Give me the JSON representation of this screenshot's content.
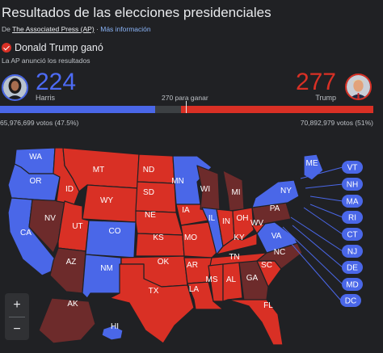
{
  "header": {
    "title": "Resultados de las elecciones presidenciales",
    "source_prefix": "De",
    "source_link": "The Associated Press (AP)",
    "source_sep": " · ",
    "more_info": "Más información"
  },
  "result": {
    "winner_text": "Donald Trump ganó",
    "announce_text": "La AP anunció los resultados"
  },
  "candidates": {
    "dem": {
      "name": "Harris",
      "electoral_votes": "224",
      "popular_votes": "65,976,699 votos (47.5%)",
      "color": "#4a67e8"
    },
    "rep": {
      "name": "Trump",
      "electoral_votes": "277",
      "popular_votes": "70,892,979 votos (51%)",
      "color": "#d93025"
    }
  },
  "needed_text": "270 para ganar",
  "bar": {
    "dem_fraction": 0.4164,
    "rep_fraction": 0.5149,
    "total": 538
  },
  "colors": {
    "dem": "#4a67e8",
    "rep": "#d93025",
    "rep_dark": "#6d2b2b",
    "dem_dark": "#3a4a9a"
  },
  "states": [
    {
      "abbr": "WA",
      "party": "dem"
    },
    {
      "abbr": "OR",
      "party": "dem"
    },
    {
      "abbr": "CA",
      "party": "dem"
    },
    {
      "abbr": "NV",
      "party": "rep_dark"
    },
    {
      "abbr": "ID",
      "party": "rep"
    },
    {
      "abbr": "MT",
      "party": "rep"
    },
    {
      "abbr": "WY",
      "party": "rep"
    },
    {
      "abbr": "UT",
      "party": "rep"
    },
    {
      "abbr": "AZ",
      "party": "rep_dark"
    },
    {
      "abbr": "CO",
      "party": "dem"
    },
    {
      "abbr": "NM",
      "party": "dem"
    },
    {
      "abbr": "ND",
      "party": "rep"
    },
    {
      "abbr": "SD",
      "party": "rep"
    },
    {
      "abbr": "NE",
      "party": "rep"
    },
    {
      "abbr": "KS",
      "party": "rep"
    },
    {
      "abbr": "OK",
      "party": "rep"
    },
    {
      "abbr": "TX",
      "party": "rep"
    },
    {
      "abbr": "MN",
      "party": "dem"
    },
    {
      "abbr": "IA",
      "party": "rep"
    },
    {
      "abbr": "MO",
      "party": "rep"
    },
    {
      "abbr": "AR",
      "party": "rep"
    },
    {
      "abbr": "LA",
      "party": "rep"
    },
    {
      "abbr": "WI",
      "party": "rep_dark"
    },
    {
      "abbr": "IL",
      "party": "dem"
    },
    {
      "abbr": "MI",
      "party": "rep_dark"
    },
    {
      "abbr": "IN",
      "party": "rep"
    },
    {
      "abbr": "OH",
      "party": "rep"
    },
    {
      "abbr": "KY",
      "party": "rep"
    },
    {
      "abbr": "TN",
      "party": "rep"
    },
    {
      "abbr": "MS",
      "party": "rep"
    },
    {
      "abbr": "AL",
      "party": "rep"
    },
    {
      "abbr": "GA",
      "party": "rep_dark"
    },
    {
      "abbr": "FL",
      "party": "rep"
    },
    {
      "abbr": "SC",
      "party": "rep"
    },
    {
      "abbr": "NC",
      "party": "rep_dark"
    },
    {
      "abbr": "VA",
      "party": "dem"
    },
    {
      "abbr": "WV",
      "party": "rep"
    },
    {
      "abbr": "PA",
      "party": "rep_dark"
    },
    {
      "abbr": "NY",
      "party": "dem"
    },
    {
      "abbr": "ME",
      "party": "dem"
    },
    {
      "abbr": "AK",
      "party": "rep_dark"
    },
    {
      "abbr": "HI",
      "party": "dem"
    }
  ],
  "east_badges": [
    "VT",
    "NH",
    "MA",
    "RI",
    "CT",
    "NJ",
    "DE",
    "MD",
    "DC"
  ],
  "zoom": {
    "in": "+",
    "out": "−"
  }
}
